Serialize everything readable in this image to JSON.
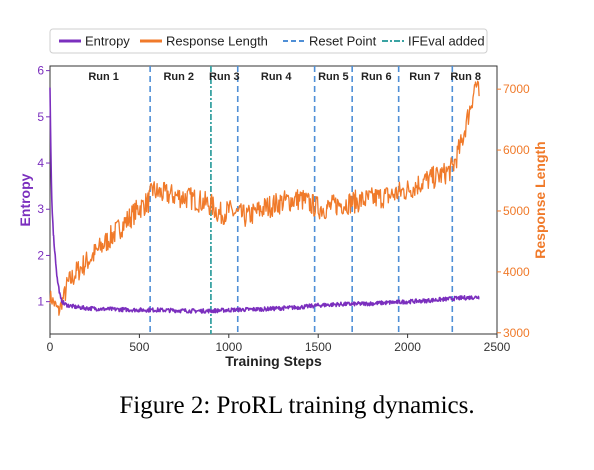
{
  "figure": {
    "caption": "Figure 2: ProRL training dynamics."
  },
  "chart_data": {
    "type": "line",
    "x_label": "Training Steps",
    "y_label_left": "Entropy",
    "y_label_right": "Response Length",
    "xlim": [
      0,
      2500
    ],
    "ylim_left": [
      0.3,
      6.1
    ],
    "ylim_right": [
      2980,
      7380
    ],
    "x_ticks": [
      "0",
      "500",
      "1000",
      "1500",
      "2000",
      "2500"
    ],
    "y_ticks_left": [
      "1",
      "2",
      "3",
      "4",
      "5",
      "6"
    ],
    "y_ticks_right": [
      "3000",
      "4000",
      "5000",
      "6000",
      "7000"
    ],
    "colors": {
      "entropy": "#7b2fbe",
      "response_length": "#f07a2a",
      "reset_point": "#4f8fd6",
      "ifeval": "#3aa3a3",
      "left_axis": "#7b2fbe",
      "right_axis": "#f07a2a"
    },
    "legend": {
      "placement": "top-center",
      "entries": [
        {
          "label": "Entropy",
          "style": "solid",
          "color_key": "entropy"
        },
        {
          "label": "Response Length",
          "style": "solid",
          "color_key": "response_length"
        },
        {
          "label": "Reset Point",
          "style": "dashed",
          "color_key": "reset_point"
        },
        {
          "label": "IFEval added",
          "style": "dashdot",
          "color_key": "ifeval"
        }
      ]
    },
    "runs": [
      {
        "label": "Run 1",
        "x": 300
      },
      {
        "label": "Run 2",
        "x": 720
      },
      {
        "label": "Run 3",
        "x": 975
      },
      {
        "label": "Run 4",
        "x": 1265
      },
      {
        "label": "Run 5",
        "x": 1585
      },
      {
        "label": "Run 6",
        "x": 1825
      },
      {
        "label": "Run 7",
        "x": 2095
      },
      {
        "label": "Run 8",
        "x": 2325
      }
    ],
    "reset_points": [
      560,
      1050,
      1480,
      1690,
      1950,
      2250
    ],
    "ifeval_added": [
      900
    ],
    "series": [
      {
        "name": "Entropy",
        "axis": "left",
        "x": [
          0,
          5,
          10,
          20,
          40,
          60,
          80,
          100,
          150,
          200,
          300,
          400,
          500,
          600,
          700,
          800,
          900,
          1000,
          1100,
          1200,
          1300,
          1400,
          1500,
          1600,
          1700,
          1800,
          1900,
          2000,
          2100,
          2200,
          2300,
          2400
        ],
        "y": [
          5.6,
          4.2,
          3.2,
          2.4,
          1.5,
          1.05,
          0.95,
          0.92,
          0.88,
          0.86,
          0.84,
          0.83,
          0.82,
          0.82,
          0.81,
          0.8,
          0.8,
          0.82,
          0.83,
          0.84,
          0.86,
          0.88,
          0.92,
          0.94,
          0.95,
          0.96,
          0.98,
          1.0,
          1.02,
          1.05,
          1.08,
          1.1
        ]
      },
      {
        "name": "Response Length",
        "axis": "right",
        "x": [
          0,
          50,
          100,
          150,
          200,
          250,
          300,
          350,
          400,
          450,
          500,
          550,
          575,
          600,
          700,
          800,
          900,
          950,
          1000,
          1100,
          1200,
          1300,
          1400,
          1500,
          1550,
          1600,
          1700,
          1800,
          1900,
          1950,
          2000,
          2100,
          2200,
          2250,
          2300,
          2350,
          2380,
          2400
        ],
        "y": [
          3600,
          3350,
          3800,
          4000,
          4150,
          4300,
          4450,
          4600,
          4750,
          4900,
          5050,
          5150,
          5350,
          5300,
          5250,
          5200,
          5100,
          4950,
          5000,
          4900,
          5050,
          5150,
          5200,
          5050,
          5050,
          5100,
          5150,
          5200,
          5250,
          5300,
          5350,
          5500,
          5600,
          5700,
          6100,
          6700,
          7100,
          6900
        ]
      }
    ]
  }
}
